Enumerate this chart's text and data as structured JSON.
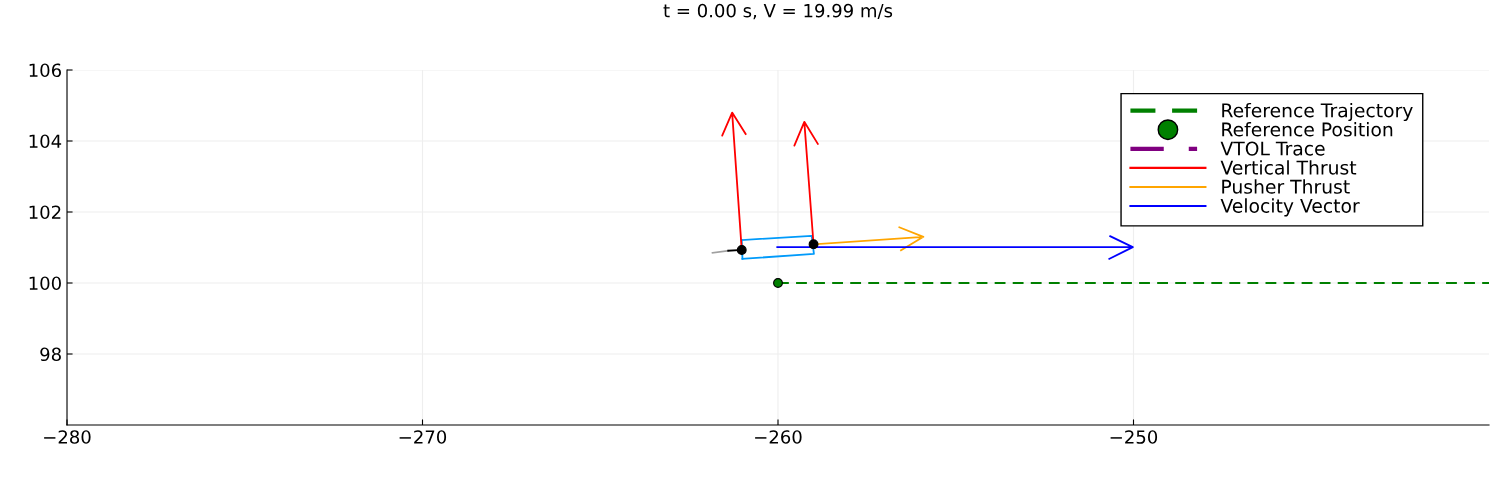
{
  "chart_data": {
    "type": "line",
    "title": "t = 0.00 s, V = 19.99 m/s",
    "xlim": [
      -280,
      -240
    ],
    "xticks": [
      -280,
      -270,
      -260,
      -250
    ],
    "ylim": [
      96,
      106
    ],
    "yticks": [
      98,
      100,
      102,
      104,
      106
    ],
    "grid": true,
    "legend": "top right",
    "series": [
      {
        "name": "Reference Trajectory",
        "color": "#008000",
        "line_style": "dashed",
        "x": [
          -260,
          -240
        ],
        "values": [
          100,
          100
        ]
      },
      {
        "name": "Reference Position",
        "type": "scatter",
        "color": "#008000",
        "marker": "circle",
        "x": [
          -260
        ],
        "values": [
          100
        ]
      },
      {
        "name": "VTOL Trace",
        "color": "#800080",
        "line_style": "dashdot"
      },
      {
        "color": "#a0a0a0",
        "x": [
          -261.84,
          -261.4
        ],
        "values": [
          100.85,
          100.91
        ]
      },
      {
        "color": "#000000",
        "x": [
          -261.4,
          -261.02
        ],
        "values": [
          100.91,
          100.93
        ]
      },
      {
        "color": "#009afa",
        "x": [
          -261.02,
          -259.05,
          -258.99,
          -261.0
        ],
        "values": [
          101.21,
          101.33,
          100.82,
          100.68
        ]
      },
      {
        "color": "#009afa",
        "x": [
          -261.0,
          -261.02
        ],
        "values": [
          100.68,
          101.21
        ]
      },
      {
        "name": "Vertical Thrust",
        "color": "#ff0000",
        "x": [
          -261.02,
          -261.29,
          -261.57,
          -261.29,
          -260.91
        ],
        "values": [
          100.93,
          104.8,
          104.15,
          104.8,
          104.2
        ]
      },
      {
        "color": "#ff0000",
        "x": [
          -259.0,
          -259.26,
          -259.54,
          -259.26,
          -258.88
        ],
        "values": [
          101.09,
          104.54,
          103.87,
          104.54,
          103.92
        ]
      },
      {
        "name": "Pusher Thrust",
        "color": "#ffa500",
        "x": [
          -259.0,
          -255.91,
          -256.59,
          -255.91,
          -256.54
        ],
        "values": [
          101.09,
          101.3,
          101.57,
          101.3,
          100.92
        ]
      },
      {
        "name": "Velocity Vector",
        "color": "#0000ff",
        "x": [
          -260.02,
          -250.02,
          -250.66,
          -250.02,
          -250.68
        ],
        "values": [
          101.01,
          101.01,
          101.32,
          101.01,
          100.68
        ]
      },
      {
        "type": "scatter",
        "color": "#000000",
        "marker": "circle",
        "x": [
          -261.02,
          -259.0
        ],
        "values": [
          100.93,
          101.09
        ]
      }
    ]
  }
}
